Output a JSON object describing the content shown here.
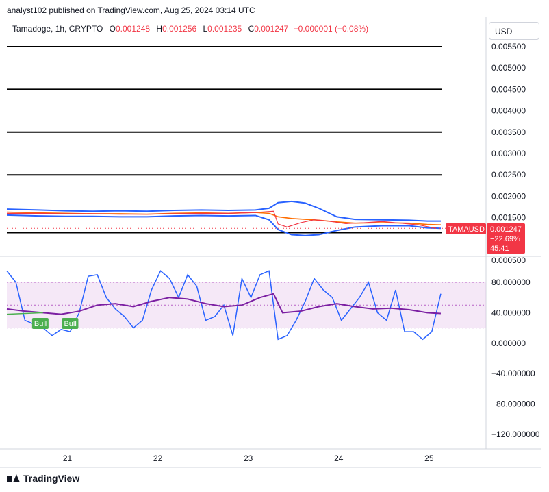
{
  "header": {
    "published": "analyst102 published on TradingView.com, Aug 25, 2024 03:14 UTC"
  },
  "legend": {
    "symbol": "Tamadoge, 1h, CRYPTO",
    "o_label": "O",
    "o": "0.001248",
    "h_label": "H",
    "h": "0.001256",
    "l_label": "L",
    "l": "0.001235",
    "c_label": "C",
    "c": "0.001247",
    "change": "−0.000001 (−0.08%)"
  },
  "currency": "USD",
  "price_tag": {
    "ticker": "TAMAUSD",
    "price": "0.001247",
    "change": "−22.69%",
    "countdown": "45:41",
    "color": "#f23645"
  },
  "footer": {
    "brand": "TradingView"
  },
  "chart_data": [
    {
      "type": "line",
      "title": "Tamadoge, 1h, CRYPTO",
      "ylim": [
        0.0005,
        0.0058
      ],
      "y_ticks": [
        "0.005500",
        "0.005000",
        "0.004500",
        "0.004000",
        "0.003500",
        "0.003000",
        "0.002500",
        "0.002000",
        "0.001500",
        "0.000500"
      ],
      "x_ticks": [
        {
          "x": 21,
          "label": "21"
        },
        {
          "x": 22,
          "label": "22"
        },
        {
          "x": 23,
          "label": "23"
        },
        {
          "x": 24,
          "label": "24"
        },
        {
          "x": 25,
          "label": "25"
        }
      ],
      "xlim": [
        20.35,
        25.65
      ],
      "horizontal_levels": [
        0.0055,
        0.0045,
        0.0035,
        0.0025,
        0.00115
      ],
      "series": [
        {
          "color": "#2962ff",
          "x": [
            20.35,
            20.7,
            21.0,
            21.3,
            21.6,
            21.9,
            22.2,
            22.5,
            22.8,
            23.1,
            23.25,
            23.35,
            23.5,
            23.65,
            23.8,
            24.0,
            24.2,
            24.5,
            24.8,
            25.0,
            25.15
          ],
          "values": [
            0.0017,
            0.00168,
            0.00166,
            0.00165,
            0.00166,
            0.00165,
            0.00167,
            0.00168,
            0.00167,
            0.00168,
            0.00172,
            0.00185,
            0.00188,
            0.00184,
            0.00172,
            0.00152,
            0.00146,
            0.00145,
            0.00144,
            0.00142,
            0.00142
          ]
        },
        {
          "color": "#2962ff",
          "x": [
            20.35,
            20.7,
            21.0,
            21.3,
            21.6,
            21.9,
            22.2,
            22.5,
            22.8,
            23.1,
            23.25,
            23.35,
            23.5,
            23.65,
            23.8,
            24.0,
            24.2,
            24.5,
            24.8,
            25.0,
            25.15
          ],
          "values": [
            0.00156,
            0.00154,
            0.00153,
            0.00153,
            0.00152,
            0.00152,
            0.00154,
            0.00155,
            0.00154,
            0.00155,
            0.00145,
            0.00122,
            0.0011,
            0.00108,
            0.0011,
            0.0012,
            0.00128,
            0.00131,
            0.00131,
            0.00126,
            0.00125
          ]
        },
        {
          "color": "#ff6d00",
          "x": [
            20.35,
            20.7,
            21.0,
            21.3,
            21.6,
            21.9,
            22.2,
            22.5,
            22.8,
            23.1,
            23.25,
            23.35,
            23.5,
            23.65,
            23.8,
            24.0,
            24.2,
            24.5,
            24.8,
            25.0,
            25.15
          ],
          "values": [
            0.00163,
            0.00161,
            0.0016,
            0.00159,
            0.00159,
            0.00158,
            0.0016,
            0.00161,
            0.0016,
            0.00162,
            0.0016,
            0.00152,
            0.00148,
            0.00146,
            0.00144,
            0.0014,
            0.00137,
            0.00138,
            0.00137,
            0.00134,
            0.00133
          ]
        },
        {
          "color": "#f23645",
          "x": [
            20.35,
            20.7,
            21.0,
            21.3,
            21.6,
            21.9,
            22.2,
            22.5,
            22.8,
            23.1,
            23.3,
            23.35,
            23.45,
            23.6,
            23.75,
            23.9,
            24.1,
            24.3,
            24.5,
            24.7,
            24.9,
            25.1
          ],
          "values": [
            0.0016,
            0.0016,
            0.00159,
            0.00159,
            0.00158,
            0.00158,
            0.00159,
            0.0016,
            0.0016,
            0.00162,
            0.00165,
            0.00135,
            0.00128,
            0.00138,
            0.00145,
            0.00142,
            0.00136,
            0.00138,
            0.00141,
            0.00137,
            0.00133,
            0.00125
          ]
        }
      ]
    },
    {
      "type": "line",
      "ylim": [
        -140,
        100
      ],
      "y_ticks": [
        "80.000000",
        "40.000000",
        "0.000000",
        "−40.000000",
        "−80.000000",
        "−120.000000"
      ],
      "band": [
        20,
        80
      ],
      "levels": [
        20,
        50,
        80
      ],
      "annotations": [
        {
          "label": "Bull",
          "x": 20.72,
          "color": "#4caf50"
        },
        {
          "label": "Bull",
          "x": 21.05,
          "color": "#4caf50"
        }
      ],
      "series": [
        {
          "color": "#2962ff",
          "x": [
            20.35,
            20.45,
            20.55,
            20.65,
            20.75,
            20.85,
            20.95,
            21.05,
            21.15,
            21.25,
            21.35,
            21.45,
            21.55,
            21.65,
            21.75,
            21.85,
            21.95,
            22.05,
            22.15,
            22.25,
            22.35,
            22.45,
            22.55,
            22.65,
            22.75,
            22.85,
            22.95,
            23.05,
            23.15,
            23.25,
            23.35,
            23.45,
            23.55,
            23.65,
            23.75,
            23.85,
            23.95,
            24.05,
            24.15,
            24.25,
            24.35,
            24.45,
            24.55,
            24.65,
            24.75,
            24.85,
            24.95,
            25.05,
            25.15
          ],
          "values": [
            95,
            80,
            30,
            25,
            20,
            10,
            18,
            15,
            40,
            88,
            90,
            60,
            45,
            35,
            20,
            30,
            70,
            95,
            85,
            60,
            90,
            75,
            30,
            35,
            50,
            10,
            85,
            60,
            90,
            95,
            5,
            10,
            30,
            55,
            85,
            70,
            60,
            30,
            45,
            60,
            80,
            40,
            30,
            70,
            15,
            15,
            5,
            15,
            65
          ]
        },
        {
          "color": "#7b1fa2",
          "x": [
            20.35,
            20.55,
            20.75,
            20.95,
            21.15,
            21.35,
            21.55,
            21.75,
            21.95,
            22.15,
            22.35,
            22.55,
            22.75,
            22.95,
            23.15,
            23.3,
            23.4,
            23.6,
            23.8,
            24.0,
            24.2,
            24.4,
            24.6,
            24.8,
            25.0,
            25.15
          ],
          "values": [
            45,
            42,
            40,
            38,
            42,
            50,
            52,
            48,
            55,
            60,
            58,
            52,
            48,
            50,
            60,
            65,
            40,
            42,
            48,
            52,
            48,
            45,
            46,
            44,
            40,
            39
          ]
        },
        {
          "color": "#4caf50",
          "x": [
            20.35,
            20.75
          ],
          "values": [
            38,
            40
          ]
        }
      ]
    }
  ]
}
